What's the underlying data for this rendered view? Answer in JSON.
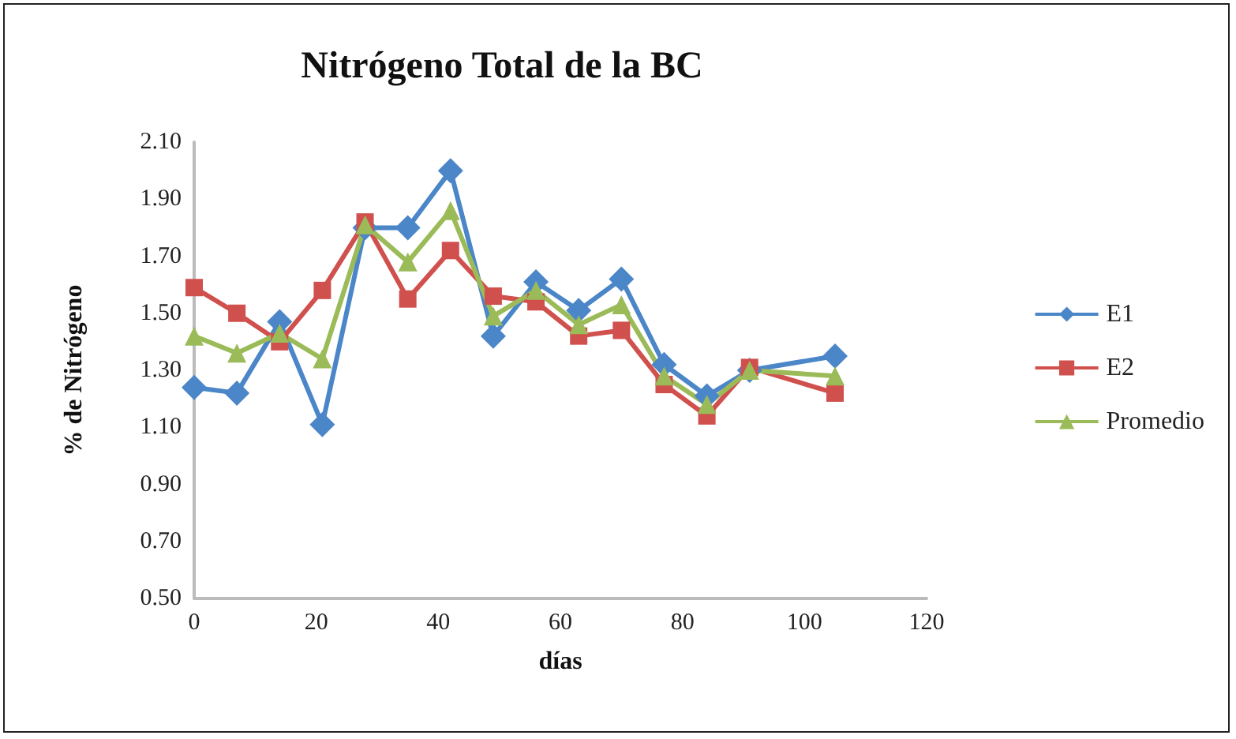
{
  "chart_data": {
    "type": "line",
    "title": "Nitrógeno Total de la BC",
    "xlabel": "días",
    "ylabel": "% de Nitrógeno",
    "x": [
      0,
      7,
      14,
      21,
      28,
      35,
      42,
      49,
      56,
      63,
      70,
      77,
      84,
      91,
      105
    ],
    "series": [
      {
        "name": "E1",
        "color": "#4a86c8",
        "marker": "diamond",
        "values": [
          1.24,
          1.22,
          1.47,
          1.11,
          1.8,
          1.8,
          2.0,
          1.42,
          1.61,
          1.51,
          1.62,
          1.32,
          1.21,
          1.3,
          1.35
        ]
      },
      {
        "name": "E2",
        "color": "#d0504d",
        "marker": "square",
        "values": [
          1.59,
          1.5,
          1.4,
          1.58,
          1.82,
          1.55,
          1.72,
          1.56,
          1.54,
          1.42,
          1.44,
          1.25,
          1.14,
          1.31,
          1.22
        ]
      },
      {
        "name": "Promedio",
        "color": "#9bbb59",
        "marker": "triangle",
        "values": [
          1.42,
          1.36,
          1.43,
          1.34,
          1.81,
          1.68,
          1.86,
          1.49,
          1.58,
          1.46,
          1.53,
          1.28,
          1.18,
          1.3,
          1.28
        ]
      }
    ],
    "xlim": [
      0,
      120
    ],
    "xticks": [
      0,
      20,
      40,
      60,
      80,
      100,
      120
    ],
    "ylim": [
      0.5,
      2.1
    ],
    "yticks": [
      {
        "value": 0.5,
        "label": "0.50"
      },
      {
        "value": 0.7,
        "label": "0.70"
      },
      {
        "value": 0.9,
        "label": "0.90"
      },
      {
        "value": 1.1,
        "label": "1.10"
      },
      {
        "value": 1.3,
        "label": "1.30"
      },
      {
        "value": 1.5,
        "label": "1.50"
      },
      {
        "value": 1.7,
        "label": "1.70"
      },
      {
        "value": 1.9,
        "label": "1.90"
      },
      {
        "value": 2.1,
        "label": "2.10"
      }
    ],
    "grid": false,
    "legend": "right",
    "line_style": "solid"
  }
}
